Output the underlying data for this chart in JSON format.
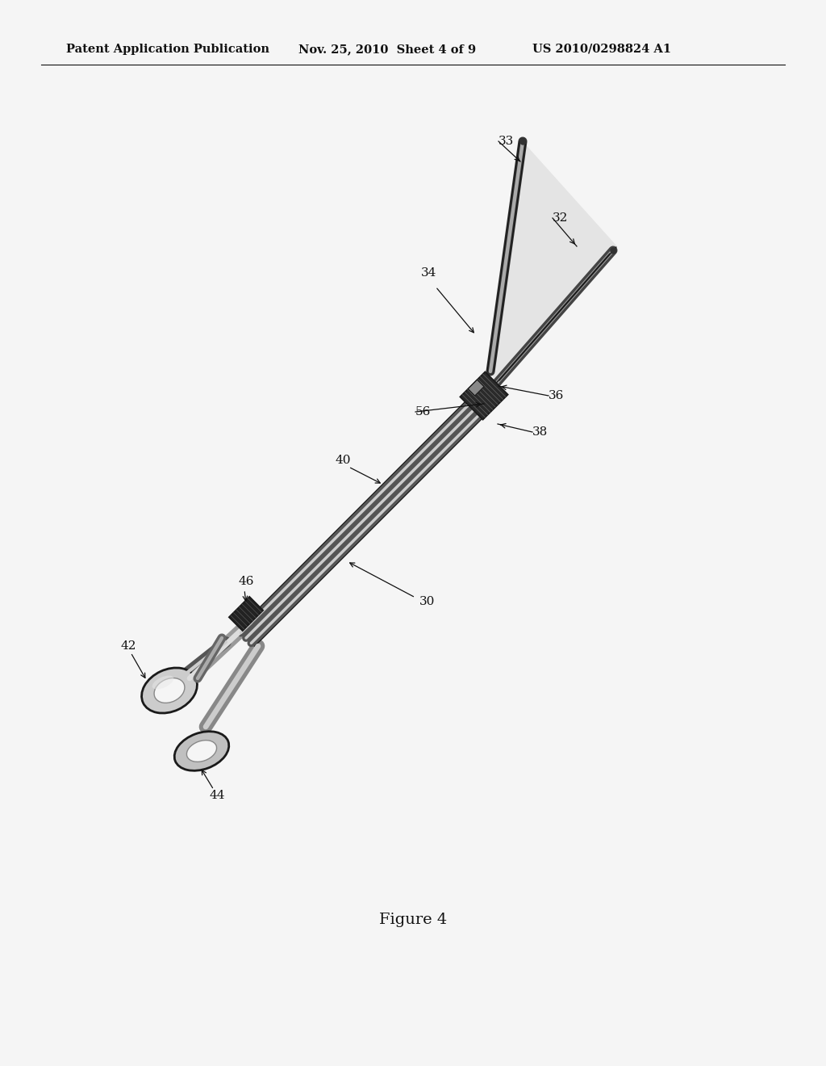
{
  "header_left": "Patent Application Publication",
  "header_center": "Nov. 25, 2010  Sheet 4 of 9",
  "header_right": "US 2010/0298824 A1",
  "figure_label": "Figure 4",
  "bg_color": "#f5f5f5",
  "header_font_size": 10.5,
  "figure_font_size": 14,
  "label_font_size": 11,
  "device_color_dark": "#1a1a1a",
  "device_color_mid": "#555555",
  "device_color_light": "#aaaaaa",
  "device_color_lighter": "#cccccc",
  "device_color_bg": "#e8e8e8"
}
